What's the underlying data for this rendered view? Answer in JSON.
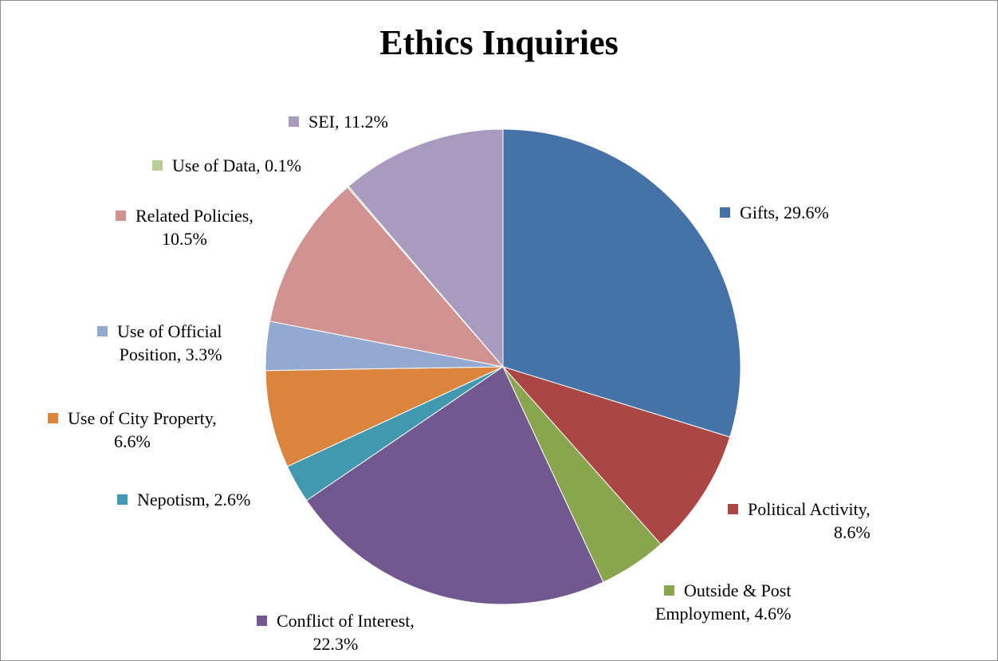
{
  "chart_data": {
    "type": "pie",
    "title": "Ethics Inquiries",
    "slices": [
      {
        "name": "Gifts",
        "value": 29.6,
        "display": "29.6%",
        "color": "#4572a7"
      },
      {
        "name": "Political Activity",
        "value": 8.6,
        "display": "8.6%",
        "color": "#aa4643"
      },
      {
        "name": "Outside & Post Employment",
        "value": 4.6,
        "display": "4.6%",
        "color": "#89a54e"
      },
      {
        "name": "Conflict of Interest",
        "value": 22.3,
        "display": "22.3%",
        "color": "#71588f"
      },
      {
        "name": "Nepotism",
        "value": 2.6,
        "display": "2.6%",
        "color": "#4198af"
      },
      {
        "name": "Use of City Property",
        "value": 6.6,
        "display": "6.6%",
        "color": "#db843d"
      },
      {
        "name": "Use of Official Position",
        "value": 3.3,
        "display": "3.3%",
        "color": "#93a9d0"
      },
      {
        "name": "Related Policies",
        "value": 10.5,
        "display": "10.5%",
        "color": "#d09392"
      },
      {
        "name": "Use of Data",
        "value": 0.1,
        "display": "0.1%",
        "color": "#b9cd96"
      },
      {
        "name": "SEI",
        "value": 11.2,
        "display": "11.2%",
        "color": "#a99bbd"
      }
    ]
  }
}
